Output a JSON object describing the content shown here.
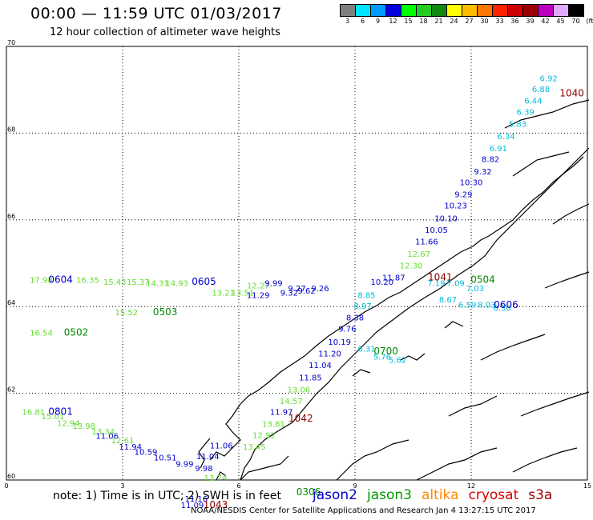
{
  "header": {
    "title": "00:00 — 11:59 UTC 01/03/2017",
    "subtitle": "12 hour collection of altimeter wave heights"
  },
  "colorbar": {
    "colors": [
      "#808080",
      "#00e5ff",
      "#0099ff",
      "#0000dd",
      "#00ff00",
      "#22cc22",
      "#118811",
      "#ffff00",
      "#ffbb00",
      "#ff7700",
      "#ff2200",
      "#cc0000",
      "#990000",
      "#bb00bb",
      "#ddaaff",
      "#000000"
    ],
    "labels": [
      "3",
      "6",
      "9",
      "12",
      "15",
      "18",
      "21",
      "24",
      "27",
      "30",
      "33",
      "36",
      "39",
      "42",
      "45",
      "70",
      "(ft)"
    ]
  },
  "footer": {
    "note": "note:  1) Time is in UTC;  2) SWH is in feet",
    "credits": "NOAA/NESDIS Center for Satellite Applications and Research    Jan  4 13:27:15 UTC 2017",
    "satellites": [
      {
        "name": "jason2",
        "color": "#0000cc"
      },
      {
        "name": "jason3",
        "color": "#009900"
      },
      {
        "name": "altika",
        "color": "#ff8800"
      },
      {
        "name": "cryosat",
        "color": "#dd0000"
      },
      {
        "name": "s3a",
        "color": "#990000"
      }
    ]
  },
  "chart_data": {
    "type": "scatter",
    "title": "00:00 — 11:59 UTC 01/03/2017",
    "subtitle": "12 hour collection of altimeter wave heights",
    "xlim": [
      0,
      15
    ],
    "ylim": [
      60,
      70
    ],
    "x_ticks": [
      "0",
      "3",
      "6",
      "9",
      "12",
      "15"
    ],
    "x_tick_values": [
      0,
      3,
      6,
      9,
      12,
      15
    ],
    "y_ticks": [
      "60",
      "62",
      "64",
      "66",
      "68",
      "70"
    ],
    "y_tick_values": [
      60,
      62,
      64,
      66,
      68,
      70
    ],
    "grid": true,
    "tracks": [
      {
        "color": "#00bbdd",
        "points": [
          {
            "x": 14.0,
            "y": 69.2,
            "v": "6.92"
          },
          {
            "x": 13.8,
            "y": 68.95,
            "v": "6.88"
          },
          {
            "x": 13.6,
            "y": 68.68,
            "v": "6.44"
          },
          {
            "x": 13.4,
            "y": 68.42,
            "v": "6.39"
          },
          {
            "x": 13.2,
            "y": 68.15,
            "v": "5.83"
          },
          {
            "x": 12.9,
            "y": 67.86,
            "v": "6.34"
          },
          {
            "x": 12.7,
            "y": 67.58,
            "v": "6.91"
          }
        ]
      },
      {
        "color": "#0000cc",
        "points": [
          {
            "x": 12.5,
            "y": 67.33,
            "v": "8.82"
          },
          {
            "x": 12.3,
            "y": 67.05,
            "v": "9.32"
          },
          {
            "x": 12.0,
            "y": 66.8,
            "v": "10.30"
          },
          {
            "x": 11.8,
            "y": 66.52,
            "v": "9.29"
          },
          {
            "x": 11.6,
            "y": 66.26,
            "v": "10.23"
          },
          {
            "x": 11.35,
            "y": 65.97,
            "v": "10.10"
          },
          {
            "x": 11.1,
            "y": 65.7,
            "v": "10.05"
          },
          {
            "x": 10.85,
            "y": 65.43,
            "v": "11.66"
          }
        ]
      },
      {
        "color": "#66dd33",
        "points": [
          {
            "x": 10.65,
            "y": 65.15,
            "v": "12.67"
          },
          {
            "x": 10.45,
            "y": 64.88,
            "v": "12.30"
          }
        ]
      },
      {
        "color": "#0000cc",
        "points": [
          {
            "x": 10.0,
            "y": 64.6,
            "v": "11.87"
          },
          {
            "x": 9.7,
            "y": 64.5,
            "v": "10.20"
          }
        ]
      },
      {
        "color": "#00bbdd",
        "points": [
          {
            "x": 9.3,
            "y": 64.2,
            "v": "8.85"
          },
          {
            "x": 9.2,
            "y": 63.95,
            "v": "8.97"
          }
        ]
      },
      {
        "color": "#0000cc",
        "points": [
          {
            "x": 9.0,
            "y": 63.68,
            "v": "8.38"
          },
          {
            "x": 8.8,
            "y": 63.42,
            "v": "9.76"
          },
          {
            "x": 8.6,
            "y": 63.12,
            "v": "10.19"
          },
          {
            "x": 8.35,
            "y": 62.85,
            "v": "11.20"
          },
          {
            "x": 8.1,
            "y": 62.58,
            "v": "11.04"
          },
          {
            "x": 7.85,
            "y": 62.3,
            "v": "11.85"
          }
        ]
      },
      {
        "color": "#66dd33",
        "points": [
          {
            "x": 7.55,
            "y": 62.02,
            "v": "13.06"
          },
          {
            "x": 7.35,
            "y": 61.75,
            "v": "14.57"
          }
        ]
      },
      {
        "color": "#0000cc",
        "points": [
          {
            "x": 7.1,
            "y": 61.5,
            "v": "11.97"
          }
        ]
      },
      {
        "color": "#66dd33",
        "points": [
          {
            "x": 6.9,
            "y": 61.23,
            "v": "13.81"
          },
          {
            "x": 6.65,
            "y": 60.97,
            "v": "12.92"
          },
          {
            "x": 6.4,
            "y": 60.7,
            "v": "13.45"
          }
        ]
      },
      {
        "color": "#0000cc",
        "points": [
          {
            "x": 5.55,
            "y": 60.73,
            "v": "11.06"
          },
          {
            "x": 5.2,
            "y": 60.48,
            "v": "11.04"
          }
        ]
      },
      {
        "color": "#00bbdd",
        "points": [
          {
            "x": 11.1,
            "y": 64.47,
            "v": "7.19"
          },
          {
            "x": 11.6,
            "y": 64.47,
            "v": "7.09"
          },
          {
            "x": 12.1,
            "y": 64.35,
            "v": "7.03"
          },
          {
            "x": 11.4,
            "y": 64.1,
            "v": "8.67"
          },
          {
            "x": 11.9,
            "y": 63.98,
            "v": "6.59"
          },
          {
            "x": 12.4,
            "y": 63.98,
            "v": "8.03"
          },
          {
            "x": 12.8,
            "y": 63.9,
            "v": "6.50"
          },
          {
            "x": 9.3,
            "y": 62.96,
            "v": "6.31"
          },
          {
            "x": 9.7,
            "y": 62.78,
            "v": "5.76"
          },
          {
            "x": 10.1,
            "y": 62.7,
            "v": "5.62"
          }
        ]
      },
      {
        "color": "#66dd33",
        "points": [
          {
            "x": 0.9,
            "y": 64.55,
            "v": "17.98"
          },
          {
            "x": 2.1,
            "y": 64.55,
            "v": "16.35"
          },
          {
            "x": 2.8,
            "y": 64.5,
            "v": "15.43"
          },
          {
            "x": 3.4,
            "y": 64.5,
            "v": "15.37"
          },
          {
            "x": 3.9,
            "y": 64.47,
            "v": "14.31"
          },
          {
            "x": 4.4,
            "y": 64.47,
            "v": "14.93"
          },
          {
            "x": 5.6,
            "y": 64.25,
            "v": "13.21"
          },
          {
            "x": 6.1,
            "y": 64.25,
            "v": "13.51"
          },
          {
            "x": 6.5,
            "y": 64.42,
            "v": "12.27"
          }
        ]
      },
      {
        "color": "#0000cc",
        "points": [
          {
            "x": 6.9,
            "y": 64.47,
            "v": "9.99"
          },
          {
            "x": 7.5,
            "y": 64.35,
            "v": "9.27"
          },
          {
            "x": 8.1,
            "y": 64.35,
            "v": "9.26"
          },
          {
            "x": 7.3,
            "y": 64.25,
            "v": "9.32"
          },
          {
            "x": 7.75,
            "y": 64.3,
            "v": "9.62"
          },
          {
            "x": 6.5,
            "y": 64.2,
            "v": "11.29"
          }
        ]
      },
      {
        "color": "#66dd33",
        "points": [
          {
            "x": 0.9,
            "y": 63.33,
            "v": "16.54"
          },
          {
            "x": 3.1,
            "y": 63.8,
            "v": "15.52"
          }
        ]
      },
      {
        "color": "#66dd33",
        "points": [
          {
            "x": 0.7,
            "y": 61.5,
            "v": "16.81"
          },
          {
            "x": 1.2,
            "y": 61.4,
            "v": "15.01"
          },
          {
            "x": 1.6,
            "y": 61.25,
            "v": "12.94"
          },
          {
            "x": 2.0,
            "y": 61.18,
            "v": "13.98"
          },
          {
            "x": 2.5,
            "y": 61.05,
            "v": "13.34"
          }
        ]
      },
      {
        "color": "#0000cc",
        "points": [
          {
            "x": 2.6,
            "y": 60.95,
            "v": "11.06"
          },
          {
            "x": 3.2,
            "y": 60.7,
            "v": "11.94"
          }
        ]
      },
      {
        "color": "#66dd33",
        "points": [
          {
            "x": 3.0,
            "y": 60.85,
            "v": "12.61"
          }
        ]
      },
      {
        "color": "#0000cc",
        "points": [
          {
            "x": 3.6,
            "y": 60.58,
            "v": "10.59"
          },
          {
            "x": 4.1,
            "y": 60.45,
            "v": "10.51"
          },
          {
            "x": 4.6,
            "y": 60.3,
            "v": "9.99"
          },
          {
            "x": 5.1,
            "y": 60.2,
            "v": "9.98"
          }
        ]
      },
      {
        "color": "#66dd33",
        "points": [
          {
            "x": 5.4,
            "y": 59.98,
            "v": "13.74"
          }
        ]
      },
      {
        "color": "#0000cc",
        "points": [
          {
            "x": 4.9,
            "y": 59.5,
            "v": "11.16"
          },
          {
            "x": 4.8,
            "y": 59.35,
            "v": "11.09"
          }
        ]
      }
    ],
    "pass_labels": [
      {
        "x": 1.4,
        "y": 64.55,
        "text": "0604",
        "color": "#0000cc"
      },
      {
        "x": 5.1,
        "y": 64.5,
        "text": "0605",
        "color": "#0000cc"
      },
      {
        "x": 4.1,
        "y": 63.8,
        "text": "0503",
        "color": "#008800"
      },
      {
        "x": 1.8,
        "y": 63.33,
        "text": "0502",
        "color": "#008800"
      },
      {
        "x": 11.2,
        "y": 64.6,
        "text": "1041",
        "color": "#880000"
      },
      {
        "x": 12.3,
        "y": 64.55,
        "text": "0504",
        "color": "#008800"
      },
      {
        "x": 12.9,
        "y": 63.97,
        "text": "0606",
        "color": "#0000cc"
      },
      {
        "x": 9.8,
        "y": 62.9,
        "text": "0700",
        "color": "#008800"
      },
      {
        "x": 1.4,
        "y": 61.5,
        "text": "0801",
        "color": "#0000cc"
      },
      {
        "x": 7.6,
        "y": 61.35,
        "text": "1042",
        "color": "#880000"
      },
      {
        "x": 7.8,
        "y": 59.65,
        "text": "0306",
        "color": "#008800"
      },
      {
        "x": 14.6,
        "y": 68.85,
        "text": "1040",
        "color": "#880000"
      },
      {
        "x": 5.4,
        "y": 59.35,
        "text": "1043",
        "color": "#880000"
      }
    ]
  }
}
